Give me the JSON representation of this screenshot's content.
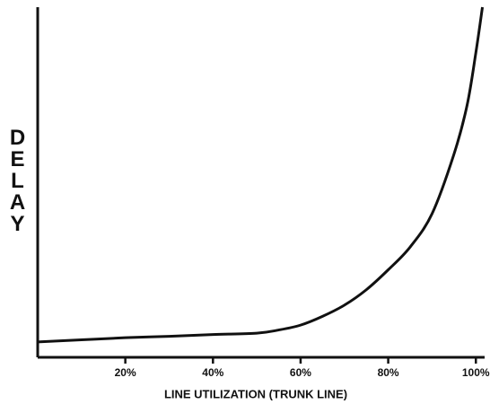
{
  "chart_data": {
    "type": "line",
    "x_label": "LINE UTILIZATION (TRUNK LINE)",
    "y_label": "DELAY",
    "xlim": [
      0,
      102
    ],
    "ylim": [
      0,
      100
    ],
    "xticks": [
      {
        "value": 20,
        "label": "20%"
      },
      {
        "value": 40,
        "label": "40%"
      },
      {
        "value": 60,
        "label": "60%"
      },
      {
        "value": 80,
        "label": "80%"
      },
      {
        "value": 100,
        "label": "100%"
      }
    ],
    "x": [
      0,
      10,
      20,
      30,
      40,
      50,
      55,
      60,
      65,
      70,
      75,
      80,
      85,
      90,
      95,
      98,
      100,
      101.5
    ],
    "series": [
      {
        "color": "#111111",
        "values": [
          4.4,
          5.0,
          5.6,
          6.0,
          6.5,
          6.9,
          7.8,
          9.2,
          11.7,
          14.9,
          19.3,
          25,
          31.5,
          41,
          58,
          72,
          87,
          100
        ]
      }
    ]
  }
}
